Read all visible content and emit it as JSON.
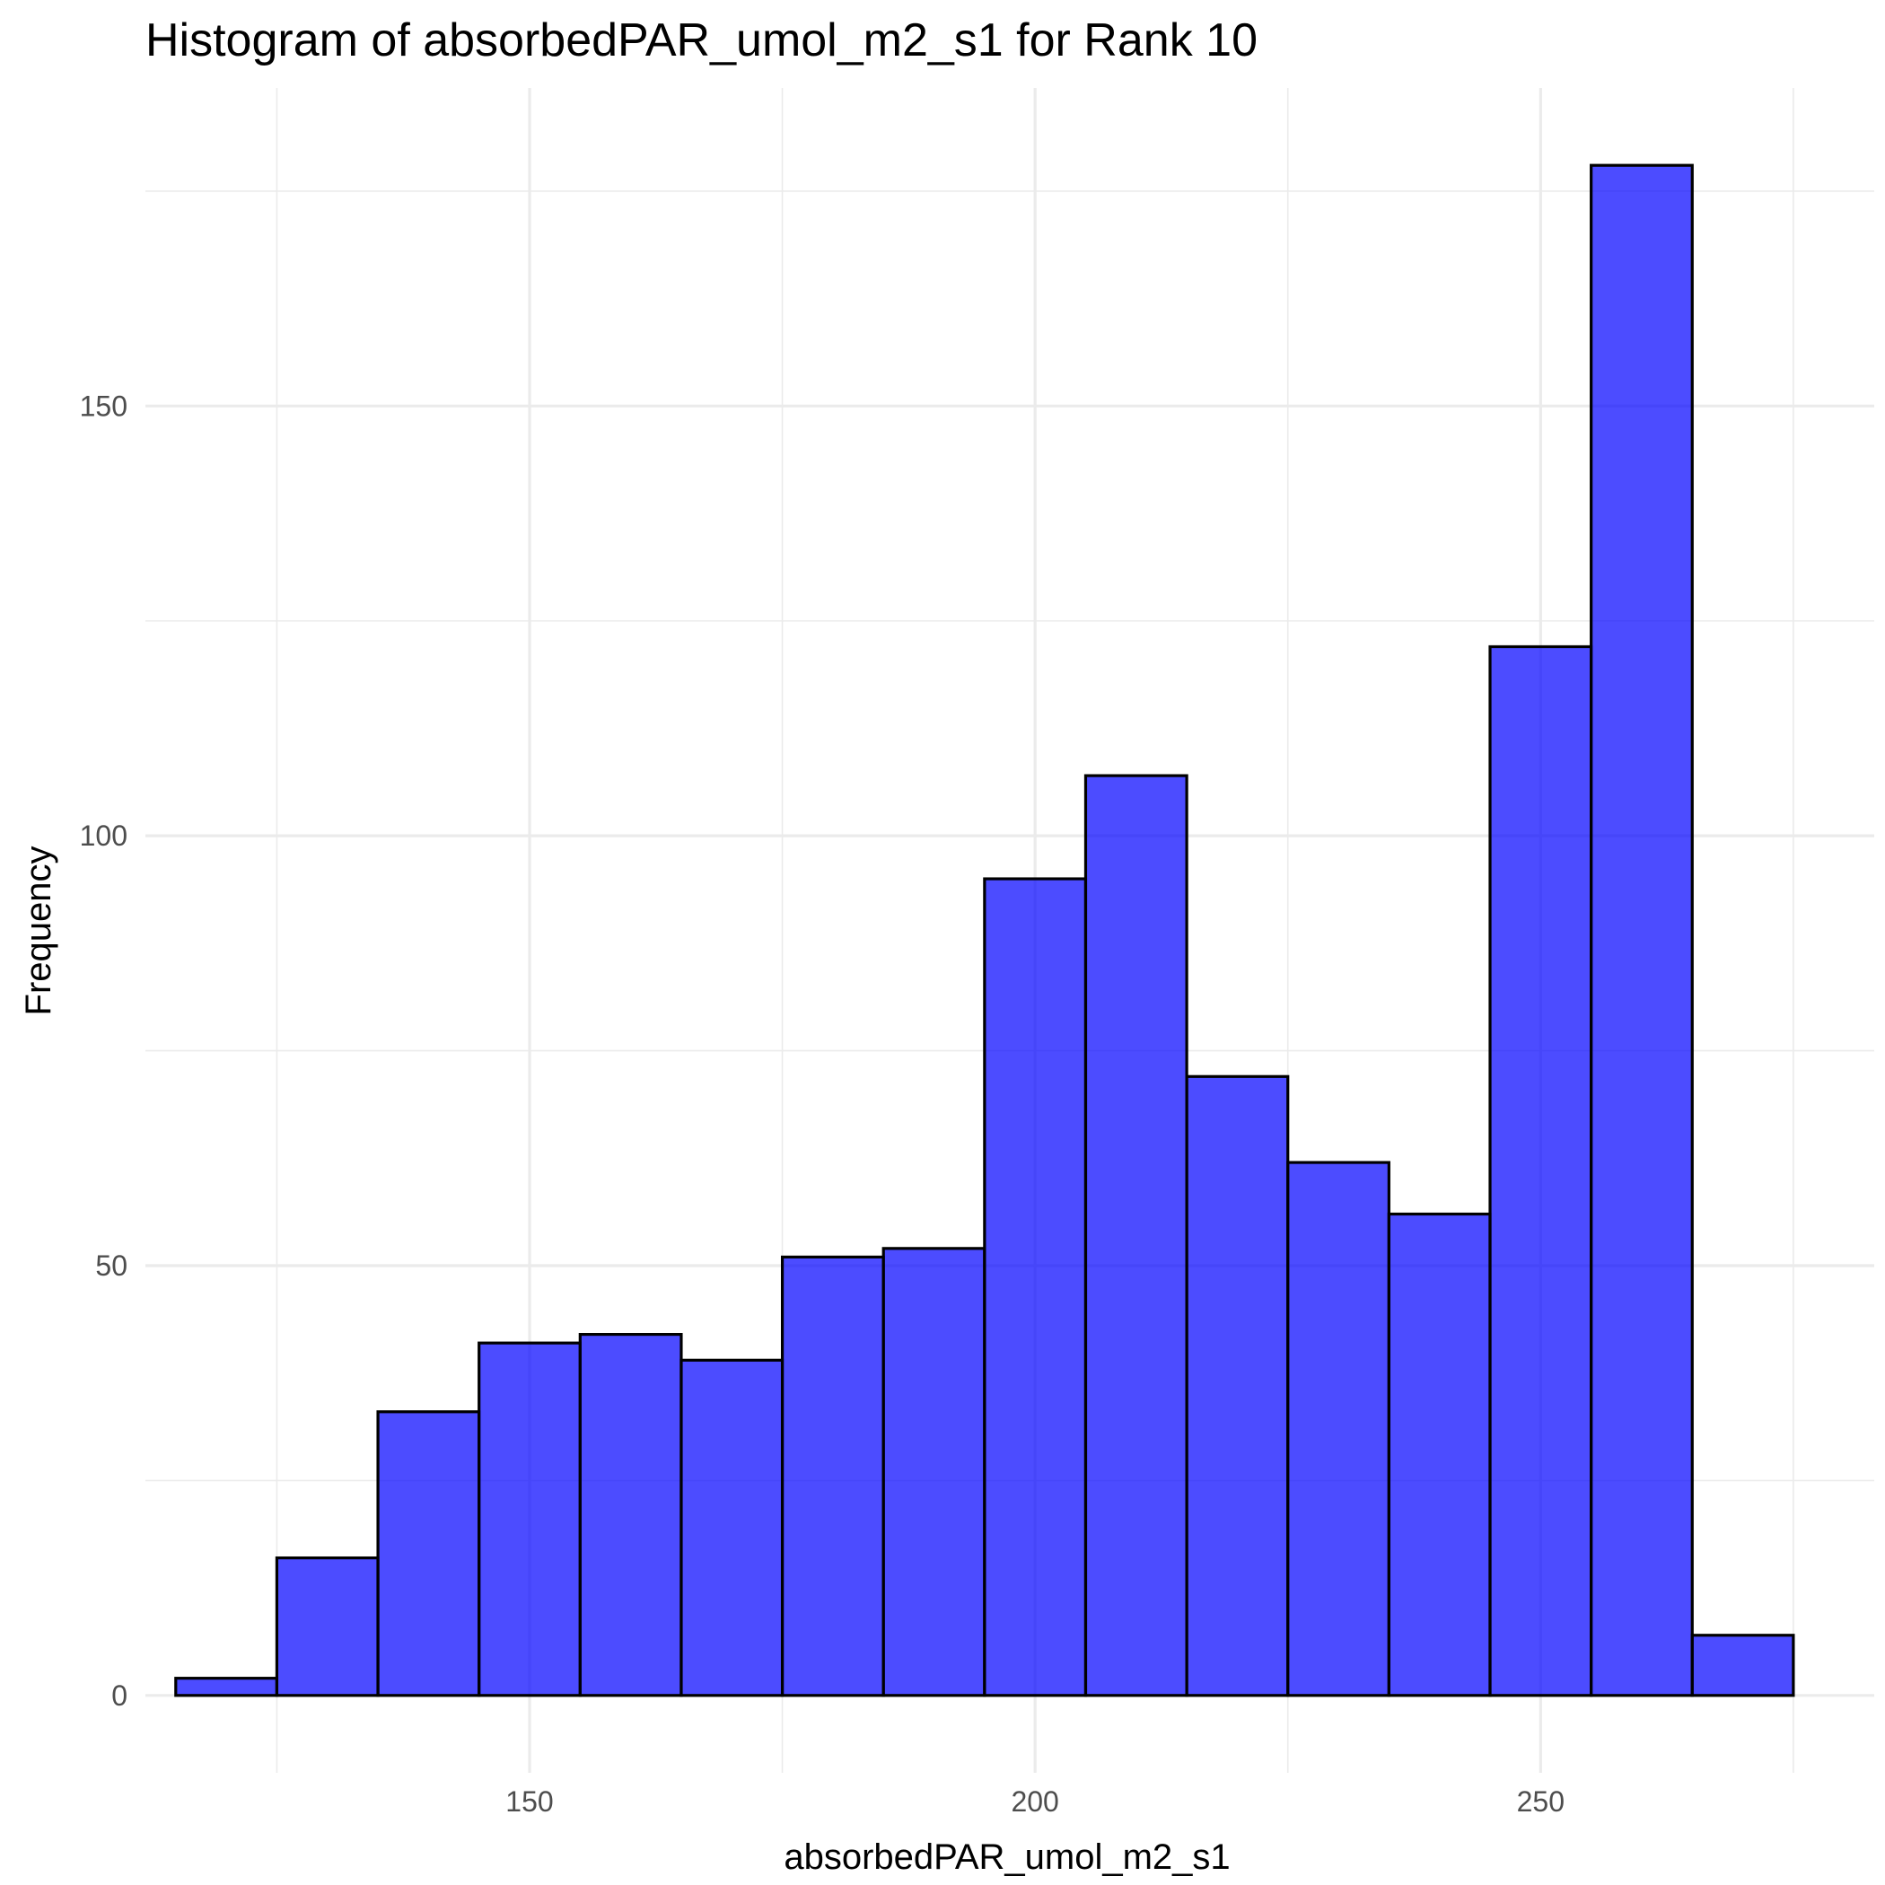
{
  "chart_data": {
    "type": "histogram",
    "title": "Histogram of absorbedPAR_umol_m2_s1 for Rank 10",
    "xlabel": "absorbedPAR_umol_m2_s1",
    "ylabel": "Frequency",
    "x_ticks": [
      150,
      200,
      250
    ],
    "y_ticks": [
      0,
      50,
      100,
      150
    ],
    "xlim": [
      112,
      283
    ],
    "ylim": [
      -9,
      187
    ],
    "bin_width": 10,
    "bins": [
      {
        "start": 115,
        "end": 125,
        "count": 2
      },
      {
        "start": 125,
        "end": 135,
        "count": 16
      },
      {
        "start": 135,
        "end": 145,
        "count": 33
      },
      {
        "start": 145,
        "end": 155,
        "count": 41
      },
      {
        "start": 155,
        "end": 165,
        "count": 42
      },
      {
        "start": 165,
        "end": 175,
        "count": 39
      },
      {
        "start": 175,
        "end": 185,
        "count": 51
      },
      {
        "start": 185,
        "end": 195,
        "count": 52
      },
      {
        "start": 195,
        "end": 205,
        "count": 95
      },
      {
        "start": 205,
        "end": 215,
        "count": 107
      },
      {
        "start": 215,
        "end": 225,
        "count": 72
      },
      {
        "start": 225,
        "end": 235,
        "count": 62
      },
      {
        "start": 235,
        "end": 245,
        "count": 56
      },
      {
        "start": 245,
        "end": 255,
        "count": 122
      },
      {
        "start": 255,
        "end": 265,
        "count": 178
      },
      {
        "start": 265,
        "end": 275,
        "count": 7
      }
    ],
    "bar_fill": "#0000ff",
    "bar_fill_opacity": 0.7,
    "bar_outline": "#000000",
    "grid": true,
    "legend": "none"
  }
}
